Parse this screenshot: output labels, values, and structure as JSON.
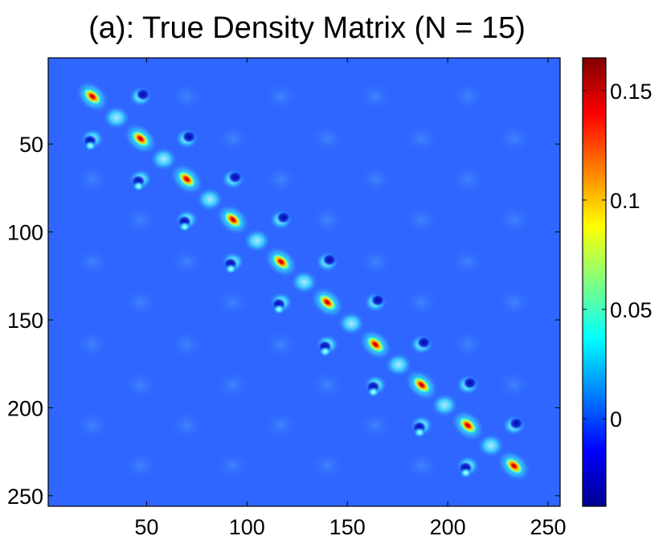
{
  "chart_data": {
    "type": "heatmap",
    "title": "(a): True Density Matrix (N = 15)",
    "xlabel": "",
    "ylabel": "",
    "xlim": [
      1,
      256
    ],
    "ylim": [
      256,
      1
    ],
    "xticks": [
      50,
      100,
      150,
      200,
      250
    ],
    "yticks": [
      50,
      100,
      150,
      200,
      250
    ],
    "diagonal_peaks": [
      {
        "x": 23,
        "y": 23,
        "value": 0.165
      },
      {
        "x": 47,
        "y": 47,
        "value": 0.165
      },
      {
        "x": 70,
        "y": 70,
        "value": 0.165
      },
      {
        "x": 93,
        "y": 93,
        "value": 0.165
      },
      {
        "x": 117,
        "y": 117,
        "value": 0.165
      },
      {
        "x": 140,
        "y": 140,
        "value": 0.165
      },
      {
        "x": 164,
        "y": 164,
        "value": 0.165
      },
      {
        "x": 187,
        "y": 187,
        "value": 0.165
      },
      {
        "x": 210,
        "y": 210,
        "value": 0.165
      },
      {
        "x": 233,
        "y": 233,
        "value": 0.165
      }
    ],
    "background_value": 0.0,
    "colorbar": {
      "min": -0.04,
      "max": 0.165,
      "ticks": [
        0,
        0.05,
        0.1,
        0.15
      ],
      "tick_labels": [
        "0",
        "0.05",
        "0.1",
        "0.15"
      ],
      "colormap": "jet"
    }
  }
}
